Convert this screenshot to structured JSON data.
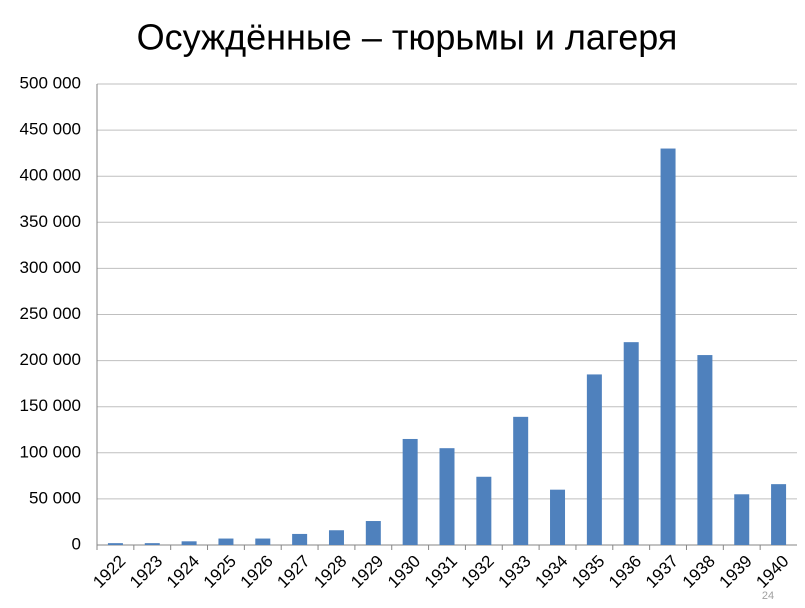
{
  "chart_data": {
    "type": "bar",
    "title": "Осуждённые – тюрьмы и лагеря",
    "categories": [
      "1922",
      "1923",
      "1924",
      "1925",
      "1926",
      "1927",
      "1928",
      "1929",
      "1930",
      "1931",
      "1932",
      "1933",
      "1934",
      "1935",
      "1936",
      "1937",
      "1938",
      "1939",
      "1940"
    ],
    "values": [
      2000,
      2000,
      4000,
      7000,
      7000,
      12000,
      16000,
      26000,
      115000,
      105000,
      74000,
      139000,
      60000,
      185000,
      220000,
      430000,
      206000,
      55000,
      66000
    ],
    "color": "#4f81bd",
    "ylim": [
      0,
      500000
    ],
    "yticks": [
      0,
      {
        "value": 50000,
        "label": "50 000"
      },
      {
        "value": 100000,
        "label": "100 000"
      },
      {
        "value": 150000,
        "label": "150 000"
      },
      {
        "value": 200000,
        "label": "200 000"
      },
      {
        "value": 250000,
        "label": "250 000"
      },
      {
        "value": 300000,
        "label": "300 000"
      },
      {
        "value": 350000,
        "label": "350 000"
      },
      {
        "value": 400000,
        "label": "400 000"
      },
      {
        "value": 450000,
        "label": "450 000"
      },
      {
        "value": 500000,
        "label": "500 000"
      }
    ],
    "grid": true
  },
  "slide_number": "24"
}
